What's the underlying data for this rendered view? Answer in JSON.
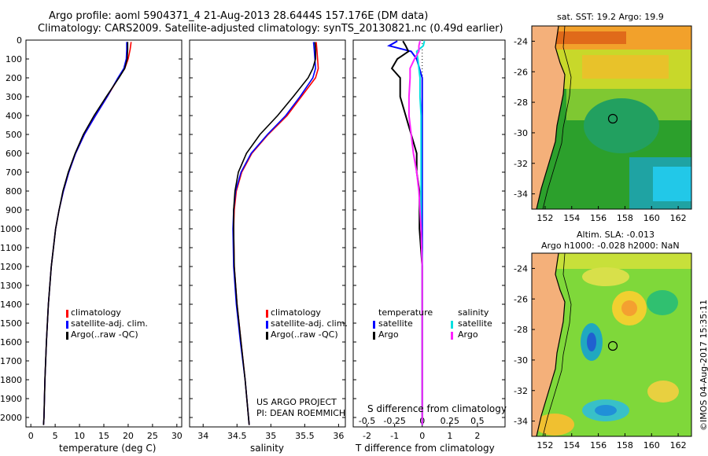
{
  "header": {
    "line1": "Argo profile: aoml 5904371_4 21-Aug-2013 28.6444S 157.176E (DM data)",
    "line2": "Climatology: CARS2009. Satellite-adjusted climatology: synTS_20130821.nc (0.49d earlier)"
  },
  "colors": {
    "climatology": "#ff0000",
    "satellite": "#0000ff",
    "argo": "#000000",
    "sat_salinity": "#00e0e0",
    "argo_salinity": "#ff20ff"
  },
  "legend_profile": {
    "climatology": "climatology",
    "satellite": "satellite-adj. clim.",
    "argo": "Argo(..raw -QC)"
  },
  "legend_diff": {
    "temperature": "temperature",
    "salinity": "salinity",
    "t_satellite": "satellite",
    "t_argo": "Argo",
    "s_satellite": "satellite",
    "s_argo": "Argo"
  },
  "credits": {
    "project": "US ARGO PROJECT",
    "pi": "PI: DEAN ROEMMICH"
  },
  "diff_labels": {
    "s_title": "S difference from climatology",
    "t_title": "T difference from climatology"
  },
  "map_sst": {
    "title": "sat. SST: 19.2 Argo: 19.9"
  },
  "map_sla": {
    "title1": "Altim. SLA: -0.013",
    "title2": "Argo h1000: -0.028 h2000: NaN"
  },
  "watermark": "©IMOS 04-Aug-2017 15:35:11",
  "chart_data": [
    {
      "type": "line",
      "title": "",
      "xlabel": "temperature (deg C)",
      "ylabel": "",
      "xlim": [
        -1,
        31
      ],
      "ylim": [
        2050,
        0
      ],
      "x_ticks": [
        0,
        5,
        10,
        15,
        20,
        25,
        30
      ],
      "y_ticks": [
        0,
        100,
        200,
        300,
        400,
        500,
        600,
        700,
        800,
        900,
        1000,
        1100,
        1200,
        1300,
        1400,
        1500,
        1600,
        1700,
        1800,
        1900,
        2000
      ],
      "depth": [
        10,
        50,
        100,
        150,
        200,
        300,
        400,
        500,
        600,
        700,
        800,
        900,
        1000,
        1200,
        1400,
        1600,
        1800,
        2000,
        2040
      ],
      "series": [
        {
          "name": "climatology",
          "values": [
            20.6,
            20.4,
            20.0,
            19.3,
            18.0,
            15.7,
            13.3,
            11.0,
            9.2,
            7.8,
            6.7,
            5.8,
            5.1,
            4.2,
            3.6,
            3.2,
            2.9,
            2.7,
            2.6
          ]
        },
        {
          "name": "satellite-adj. clim.",
          "values": [
            19.7,
            19.7,
            19.6,
            19.1,
            17.9,
            15.7,
            13.3,
            11.0,
            9.2,
            7.8,
            6.7,
            5.8,
            5.1,
            4.2,
            3.6,
            3.2,
            2.9,
            2.7,
            2.6
          ]
        },
        {
          "name": "Argo(..raw -QC)",
          "values": [
            19.9,
            19.9,
            19.8,
            19.3,
            18.1,
            15.5,
            13.0,
            10.8,
            9.1,
            7.7,
            6.6,
            5.8,
            5.1,
            4.2,
            3.6,
            3.2,
            2.9,
            2.7,
            2.6
          ]
        }
      ]
    },
    {
      "type": "line",
      "xlabel": "salinity",
      "xlim": [
        33.8,
        36.1
      ],
      "ylim": [
        2050,
        0
      ],
      "x_ticks": [
        34,
        34.5,
        35,
        35.5,
        36
      ],
      "depth": [
        10,
        50,
        100,
        150,
        200,
        300,
        400,
        500,
        600,
        700,
        800,
        900,
        1000,
        1200,
        1400,
        1600,
        1800,
        2000,
        2040
      ],
      "series": [
        {
          "name": "climatology",
          "values": [
            35.67,
            35.68,
            35.69,
            35.7,
            35.66,
            35.45,
            35.24,
            34.96,
            34.72,
            34.57,
            34.49,
            34.46,
            34.45,
            34.46,
            34.5,
            34.56,
            34.62,
            34.67,
            34.68
          ]
        },
        {
          "name": "satellite-adj. clim.",
          "values": [
            35.63,
            35.64,
            35.65,
            35.66,
            35.62,
            35.43,
            35.22,
            34.95,
            34.71,
            34.56,
            34.48,
            34.45,
            34.44,
            34.45,
            34.49,
            34.55,
            34.62,
            34.67,
            34.68
          ]
        },
        {
          "name": "Argo(..raw -QC)",
          "values": [
            35.65,
            35.66,
            35.66,
            35.62,
            35.55,
            35.33,
            35.1,
            34.84,
            34.64,
            34.52,
            34.47,
            34.45,
            34.45,
            34.46,
            34.5,
            34.56,
            34.62,
            34.67,
            34.68
          ]
        }
      ]
    },
    {
      "type": "line",
      "xlabel": "T difference from climatology",
      "xlabel_top": "S difference from climatology",
      "t_xlim": [
        -2.5,
        3.0
      ],
      "s_xlim": [
        -0.625,
        0.75
      ],
      "ylim": [
        2050,
        0
      ],
      "t_ticks": [
        -2,
        -1,
        0,
        1,
        2
      ],
      "s_ticks": [
        -0.5,
        -0.25,
        0,
        0.25,
        0.5
      ],
      "s_tick_labels": [
        "-0.5",
        "-0.25",
        "0",
        "0.25",
        "0.5"
      ],
      "depth": [
        5,
        30,
        60,
        100,
        150,
        200,
        300,
        400,
        500,
        600,
        700,
        800,
        900,
        1000,
        1200,
        1400,
        1600,
        1800,
        2000,
        2040
      ],
      "series": [
        {
          "name": "temperature satellite",
          "axis": "T",
          "values": [
            -0.9,
            -1.2,
            -0.4,
            -0.2,
            -0.1,
            0.0,
            0.0,
            0.0,
            0.0,
            0.0,
            0.0,
            0.0,
            0.0,
            0.0,
            0.0,
            0.0,
            0.0,
            0.0,
            0.0,
            0.0
          ]
        },
        {
          "name": "temperature Argo",
          "axis": "T",
          "values": [
            -0.7,
            -0.6,
            -0.5,
            -0.9,
            -1.1,
            -0.8,
            -0.8,
            -0.6,
            -0.4,
            -0.2,
            -0.2,
            -0.1,
            -0.1,
            -0.1,
            0.0,
            0.0,
            0.0,
            0.0,
            0.0,
            0.0
          ]
        },
        {
          "name": "salinity satellite",
          "axis": "S",
          "values": [
            0.02,
            0.01,
            -0.05,
            -0.04,
            -0.03,
            -0.02,
            -0.02,
            -0.01,
            -0.01,
            -0.01,
            -0.01,
            -0.01,
            -0.01,
            -0.01,
            0.0,
            0.0,
            0.0,
            0.0,
            0.0,
            0.0
          ]
        },
        {
          "name": "salinity Argo",
          "axis": "S",
          "values": [
            -0.02,
            -0.03,
            -0.03,
            -0.07,
            -0.11,
            -0.11,
            -0.12,
            -0.12,
            -0.1,
            -0.08,
            -0.05,
            -0.03,
            -0.02,
            -0.01,
            0.0,
            0.0,
            0.0,
            0.0,
            0.0,
            0.0
          ]
        }
      ]
    },
    {
      "type": "heatmap",
      "title": "sat. SST: 19.2 Argo: 19.9",
      "x_ticks": [
        152,
        154,
        156,
        158,
        160,
        162
      ],
      "y_ticks": [
        -24,
        -26,
        -28,
        -30,
        -32,
        -34
      ],
      "xlim": [
        151,
        163
      ],
      "ylim": [
        -23,
        -35
      ],
      "float_position": [
        157.176,
        -28.6444
      ]
    },
    {
      "type": "heatmap",
      "title": "Altim. SLA: -0.013 / Argo h1000: -0.028 h2000: NaN",
      "x_ticks": [
        152,
        154,
        156,
        158,
        160,
        162
      ],
      "y_ticks": [
        -24,
        -26,
        -28,
        -30,
        -32,
        -34
      ],
      "xlim": [
        151,
        163
      ],
      "ylim": [
        -23,
        -35
      ],
      "float_position": [
        157.176,
        -28.6444
      ]
    }
  ]
}
